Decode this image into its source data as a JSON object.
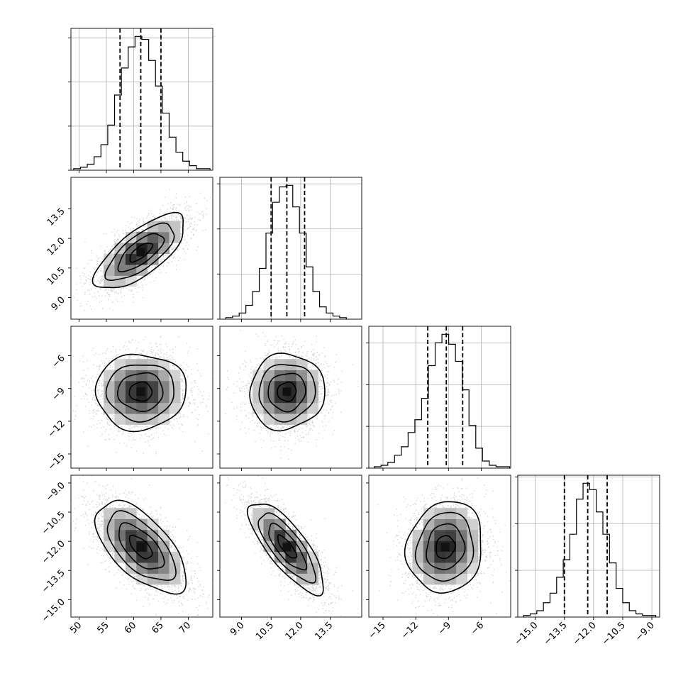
{
  "chart_data": {
    "type": "corner",
    "description_free": true,
    "parameters": [
      {
        "range": [
          48.5,
          74.5
        ],
        "ticks": [
          50,
          55,
          60,
          65,
          70
        ],
        "tick_labels": [
          "50",
          "55",
          "60",
          "65",
          "70"
        ],
        "quantiles": [
          57.5,
          61.3,
          65.0
        ],
        "hist": {
          "start": 49,
          "width": 1.25,
          "values": [
            1,
            2,
            4,
            9,
            17,
            30,
            50,
            68,
            82,
            89,
            87,
            73,
            56,
            38,
            22,
            12,
            6,
            3,
            1,
            1
          ]
        }
      },
      {
        "range": [
          7.9,
          15.1
        ],
        "ticks": [
          9.0,
          10.5,
          12.0,
          13.5
        ],
        "tick_labels": [
          "9.0",
          "10.5",
          "12.0",
          "13.5"
        ],
        "quantiles": [
          10.5,
          11.3,
          12.2
        ],
        "hist": {
          "start": 8.2,
          "width": 0.34,
          "values": [
            1,
            2,
            4,
            9,
            18,
            33,
            56,
            76,
            86,
            87,
            73,
            56,
            34,
            18,
            8,
            4,
            2,
            1
          ]
        }
      },
      {
        "range": [
          -16.3,
          -3.3
        ],
        "ticks": [
          -15,
          -12,
          -9,
          -6
        ],
        "tick_labels": [
          "−15",
          "−12",
          "−9",
          "−6"
        ],
        "quantiles": [
          -10.9,
          -9.2,
          -7.7
        ],
        "hist": {
          "start": -15.8,
          "width": 0.62,
          "values": [
            1,
            2,
            4,
            9,
            15,
            25,
            34,
            49,
            72,
            88,
            94,
            87,
            75,
            55,
            30,
            14,
            5,
            2,
            1,
            1
          ]
        }
      },
      {
        "range": [
          -15.9,
          -8.6
        ],
        "ticks": [
          -15.0,
          -13.5,
          -12.0,
          -10.5,
          -9.0
        ],
        "tick_labels": [
          "−15.0",
          "−13.5",
          "−12.0",
          "−10.5",
          "−9.0"
        ],
        "quantiles": [
          -13.5,
          -12.3,
          -11.3
        ],
        "hist": {
          "start": -15.6,
          "width": 0.34,
          "values": [
            1,
            2,
            4,
            9,
            15,
            25,
            36,
            52,
            74,
            84,
            80,
            66,
            52,
            34,
            18,
            9,
            4,
            2,
            1,
            1
          ]
        }
      }
    ],
    "hist_ticks": [
      0,
      1,
      2,
      3
    ],
    "hist_tick_ref": 88,
    "distribution": {
      "means": [
        61.3,
        11.3,
        -9.3,
        -12.3
      ],
      "sds": [
        3.7,
        0.85,
        1.55,
        1.05
      ],
      "correlations": [
        [
          0,
          1,
          0.72
        ],
        [
          0,
          3,
          -0.62
        ],
        [
          1,
          3,
          -0.78
        ],
        [
          2,
          3,
          0.1
        ],
        [
          0,
          2,
          0.02
        ],
        [
          1,
          2,
          0.05
        ]
      ]
    },
    "contour_levels_sigma": [
      0.5,
      1.0,
      1.5,
      2.0
    ]
  }
}
